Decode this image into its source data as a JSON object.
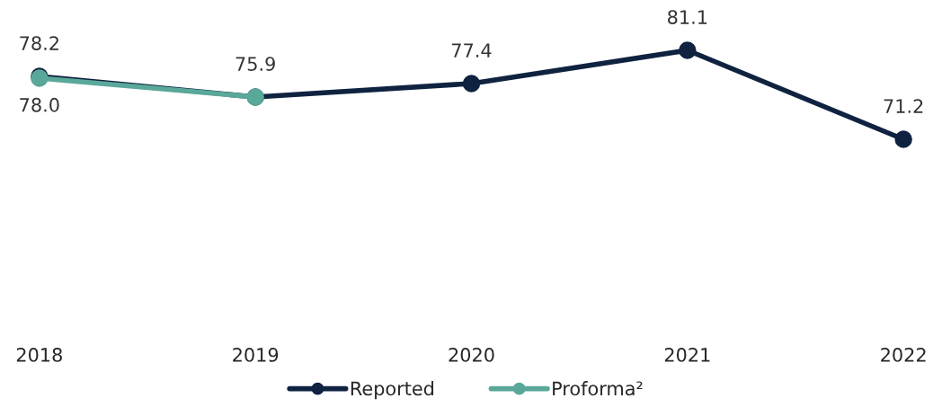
{
  "chart_data": {
    "type": "line",
    "categories": [
      "2018",
      "2019",
      "2020",
      "2021",
      "2022"
    ],
    "series": [
      {
        "name": "Reported",
        "color": "#0f2340",
        "values": [
          78.2,
          75.9,
          77.4,
          81.1,
          71.2
        ],
        "value_labels": [
          "78.2",
          "75.9",
          "77.4",
          "81.1",
          "71.2"
        ]
      },
      {
        "name": "Proforma²",
        "color": "#5aa89a",
        "values": [
          78.0,
          75.9,
          null,
          null,
          null
        ],
        "value_labels": [
          "78.0",
          null,
          null,
          null,
          null
        ]
      }
    ],
    "tick_labels": "x",
    "marker": "circle",
    "line_style": "solid",
    "legend": "bottom",
    "grid": false
  }
}
